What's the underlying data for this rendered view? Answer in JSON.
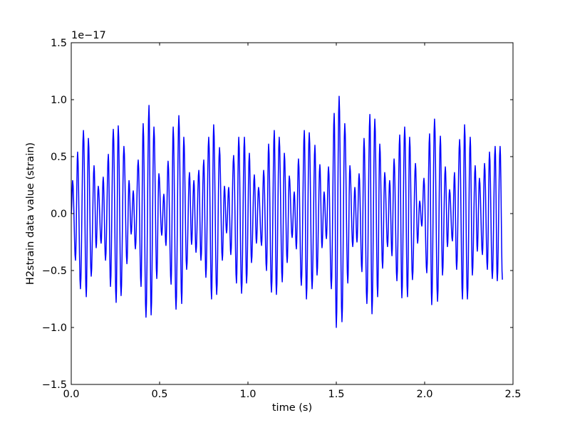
{
  "chart_data": {
    "type": "line",
    "title": "",
    "xlabel": "time (s)",
    "ylabel": "H2strain data value (strain)",
    "y_offset_label": "1e−17",
    "xlim": [
      0,
      2.5
    ],
    "ylim": [
      -1.5,
      1.5
    ],
    "y_scale_factor": 1e-17,
    "x_ticks": [
      0.0,
      0.5,
      1.0,
      1.5,
      2.0,
      2.5
    ],
    "x_tick_labels": [
      "0.0",
      "0.5",
      "1.0",
      "1.5",
      "2.0",
      "2.5"
    ],
    "y_ticks": [
      -1.5,
      -1.0,
      -0.5,
      0.0,
      0.5,
      1.0,
      1.5
    ],
    "y_tick_labels": [
      "−1.5",
      "−1.0",
      "−0.5",
      "0.0",
      "0.5",
      "1.0",
      "1.5"
    ],
    "grid": false,
    "line_color": "#0000ff",
    "series": [
      {
        "points": [
          [
            0,
            0
          ],
          [
            0.008,
            0.29
          ],
          [
            0.024,
            -0.41
          ],
          [
            0.036,
            0.54
          ],
          [
            0.052,
            -0.66
          ],
          [
            0.069,
            0.73
          ],
          [
            0.085,
            -0.73
          ],
          [
            0.097,
            0.66
          ],
          [
            0.113,
            -0.55
          ],
          [
            0.129,
            0.42
          ],
          [
            0.141,
            -0.3
          ],
          [
            0.153,
            0.24
          ],
          [
            0.169,
            -0.26
          ],
          [
            0.181,
            0.32
          ],
          [
            0.194,
            -0.41
          ],
          [
            0.21,
            0.52
          ],
          [
            0.222,
            -0.64
          ],
          [
            0.238,
            0.74
          ],
          [
            0.254,
            -0.78
          ],
          [
            0.266,
            0.77
          ],
          [
            0.282,
            -0.72
          ],
          [
            0.298,
            0.59
          ],
          [
            0.315,
            -0.44
          ],
          [
            0.327,
            0.29
          ],
          [
            0.339,
            -0.18
          ],
          [
            0.351,
            0.2
          ],
          [
            0.363,
            -0.31
          ],
          [
            0.379,
            0.47
          ],
          [
            0.395,
            -0.64
          ],
          [
            0.407,
            0.79
          ],
          [
            0.423,
            -0.91
          ],
          [
            0.44,
            0.95
          ],
          [
            0.452,
            -0.89
          ],
          [
            0.468,
            0.76
          ],
          [
            0.484,
            -0.57
          ],
          [
            0.496,
            0.35
          ],
          [
            0.512,
            -0.19
          ],
          [
            0.524,
            0.17
          ],
          [
            0.536,
            -0.28
          ],
          [
            0.548,
            0.46
          ],
          [
            0.565,
            -0.62
          ],
          [
            0.577,
            0.76
          ],
          [
            0.593,
            -0.84
          ],
          [
            0.609,
            0.86
          ],
          [
            0.625,
            -0.79
          ],
          [
            0.637,
            0.67
          ],
          [
            0.653,
            -0.49
          ],
          [
            0.669,
            0.36
          ],
          [
            0.681,
            -0.27
          ],
          [
            0.694,
            0.29
          ],
          [
            0.706,
            -0.34
          ],
          [
            0.722,
            0.38
          ],
          [
            0.734,
            -0.41
          ],
          [
            0.75,
            0.47
          ],
          [
            0.762,
            -0.56
          ],
          [
            0.778,
            0.67
          ],
          [
            0.794,
            -0.75
          ],
          [
            0.806,
            0.78
          ],
          [
            0.823,
            -0.71
          ],
          [
            0.839,
            0.58
          ],
          [
            0.855,
            -0.41
          ],
          [
            0.867,
            0.24
          ],
          [
            0.879,
            -0.17
          ],
          [
            0.891,
            0.23
          ],
          [
            0.903,
            -0.36
          ],
          [
            0.919,
            0.51
          ],
          [
            0.935,
            -0.61
          ],
          [
            0.948,
            0.67
          ],
          [
            0.964,
            -0.7
          ],
          [
            0.98,
            0.67
          ],
          [
            0.992,
            -0.61
          ],
          [
            1.008,
            0.53
          ],
          [
            1.02,
            -0.43
          ],
          [
            1.036,
            0.34
          ],
          [
            1.048,
            -0.26
          ],
          [
            1.06,
            0.23
          ],
          [
            1.077,
            -0.28
          ],
          [
            1.089,
            0.38
          ],
          [
            1.105,
            -0.5
          ],
          [
            1.117,
            0.61
          ],
          [
            1.133,
            -0.69
          ],
          [
            1.149,
            0.73
          ],
          [
            1.161,
            -0.71
          ],
          [
            1.177,
            0.67
          ],
          [
            1.194,
            -0.6
          ],
          [
            1.206,
            0.53
          ],
          [
            1.222,
            -0.43
          ],
          [
            1.234,
            0.33
          ],
          [
            1.25,
            -0.21
          ],
          [
            1.262,
            0.19
          ],
          [
            1.274,
            -0.31
          ],
          [
            1.286,
            0.48
          ],
          [
            1.302,
            -0.63
          ],
          [
            1.319,
            0.73
          ],
          [
            1.331,
            -0.75
          ],
          [
            1.347,
            0.71
          ],
          [
            1.363,
            -0.66
          ],
          [
            1.379,
            0.6
          ],
          [
            1.391,
            -0.54
          ],
          [
            1.407,
            0.43
          ],
          [
            1.419,
            -0.3
          ],
          [
            1.431,
            0.19
          ],
          [
            1.444,
            -0.22
          ],
          [
            1.456,
            0.41
          ],
          [
            1.472,
            -0.66
          ],
          [
            1.488,
            0.88
          ],
          [
            1.5,
            -1.0
          ],
          [
            1.516,
            1.03
          ],
          [
            1.532,
            -0.95
          ],
          [
            1.548,
            0.79
          ],
          [
            1.565,
            -0.61
          ],
          [
            1.577,
            0.42
          ],
          [
            1.593,
            -0.29
          ],
          [
            1.605,
            0.23
          ],
          [
            1.617,
            -0.25
          ],
          [
            1.629,
            0.35
          ],
          [
            1.645,
            -0.51
          ],
          [
            1.657,
            0.66
          ],
          [
            1.673,
            -0.79
          ],
          [
            1.69,
            0.87
          ],
          [
            1.702,
            -0.88
          ],
          [
            1.718,
            0.83
          ],
          [
            1.734,
            -0.73
          ],
          [
            1.746,
            0.61
          ],
          [
            1.762,
            -0.48
          ],
          [
            1.774,
            0.36
          ],
          [
            1.79,
            -0.29
          ],
          [
            1.802,
            0.29
          ],
          [
            1.815,
            -0.37
          ],
          [
            1.827,
            0.48
          ],
          [
            1.843,
            -0.59
          ],
          [
            1.859,
            0.69
          ],
          [
            1.871,
            -0.74
          ],
          [
            1.887,
            0.76
          ],
          [
            1.903,
            -0.73
          ],
          [
            1.915,
            0.67
          ],
          [
            1.931,
            -0.58
          ],
          [
            1.948,
            0.44
          ],
          [
            1.96,
            -0.26
          ],
          [
            1.972,
            0.11
          ],
          [
            1.984,
            -0.11
          ],
          [
            1.996,
            0.31
          ],
          [
            2.012,
            -0.52
          ],
          [
            2.028,
            0.7
          ],
          [
            2.04,
            -0.8
          ],
          [
            2.056,
            0.83
          ],
          [
            2.073,
            -0.77
          ],
          [
            2.089,
            0.68
          ],
          [
            2.101,
            -0.54
          ],
          [
            2.117,
            0.41
          ],
          [
            2.129,
            -0.29
          ],
          [
            2.141,
            0.21
          ],
          [
            2.157,
            -0.24
          ],
          [
            2.169,
            0.36
          ],
          [
            2.181,
            -0.49
          ],
          [
            2.198,
            0.65
          ],
          [
            2.214,
            -0.75
          ],
          [
            2.226,
            0.78
          ],
          [
            2.242,
            -0.75
          ],
          [
            2.258,
            0.67
          ],
          [
            2.27,
            -0.54
          ],
          [
            2.286,
            0.42
          ],
          [
            2.298,
            -0.33
          ],
          [
            2.31,
            0.31
          ],
          [
            2.327,
            -0.36
          ],
          [
            2.339,
            0.44
          ],
          [
            2.355,
            -0.49
          ],
          [
            2.367,
            0.54
          ],
          [
            2.383,
            -0.57
          ],
          [
            2.399,
            0.59
          ],
          [
            2.411,
            -0.59
          ],
          [
            2.427,
            0.59
          ],
          [
            2.44,
            -0.58
          ]
        ]
      }
    ]
  }
}
